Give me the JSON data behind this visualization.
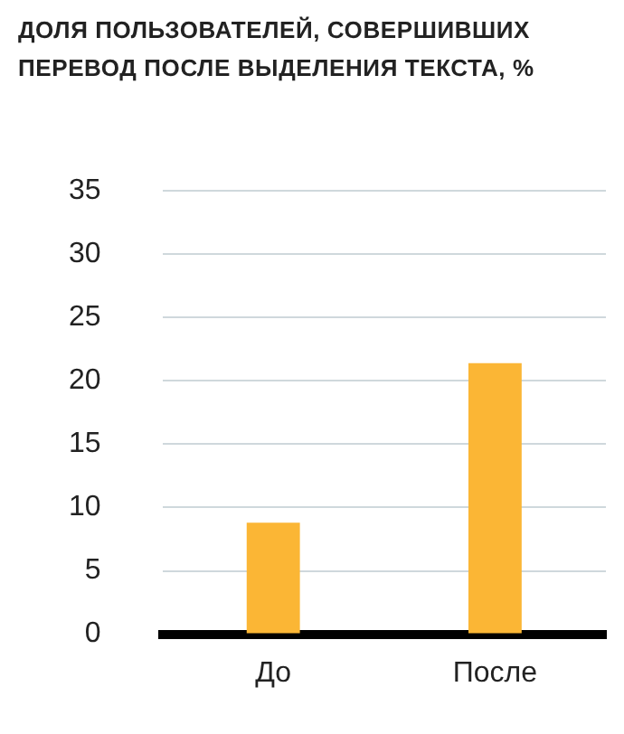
{
  "chart_data": {
    "type": "bar",
    "title": "ДОЛЯ ПОЛЬЗОВАТЕЛЕЙ, СОВЕРШИВШИХ ПЕРЕВОД ПОСЛЕ ВЫДЕЛЕНИЯ ТЕКСТА, %",
    "categories": [
      "До",
      "После"
    ],
    "values": [
      8.8,
      21.4
    ],
    "color": "#fbb635",
    "ylim": [
      0,
      35
    ],
    "yticks": [
      0,
      5,
      10,
      15,
      20,
      25,
      30,
      35
    ],
    "grid": "y",
    "legend": false
  }
}
